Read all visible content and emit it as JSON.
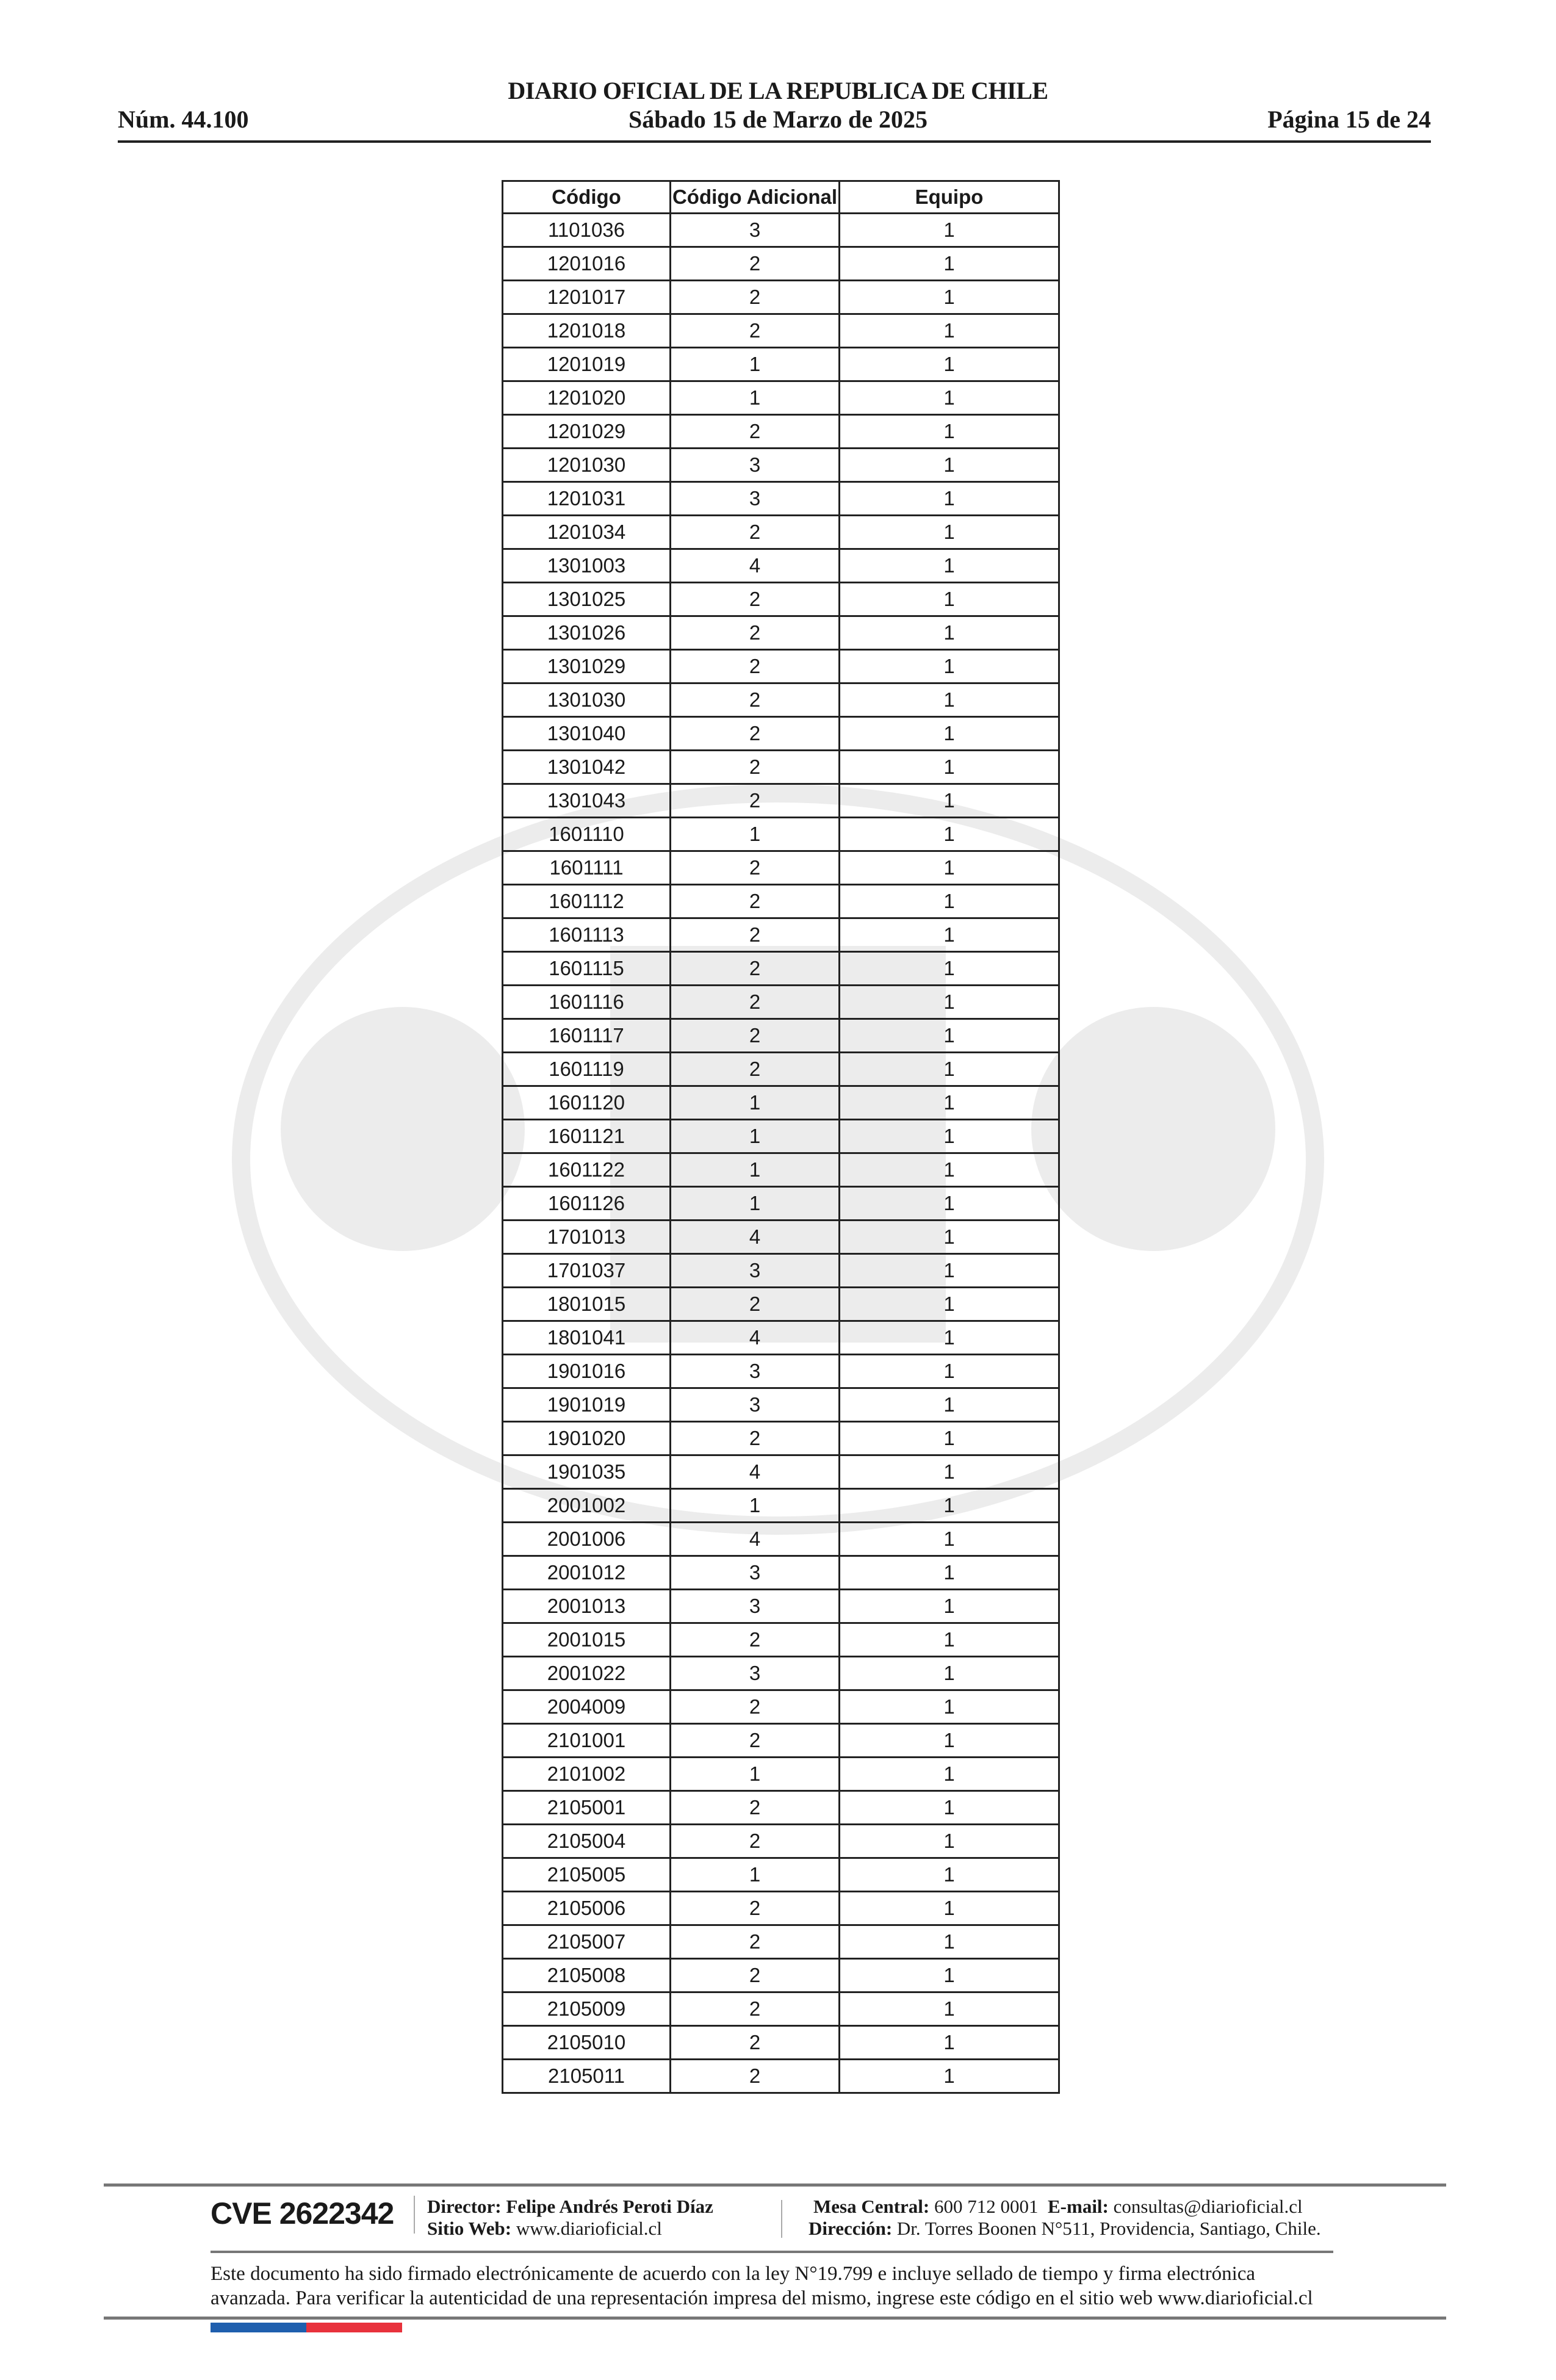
{
  "header": {
    "title": "DIARIO OFICIAL DE LA REPUBLICA DE CHILE",
    "number": "Núm. 44.100",
    "date": "Sábado 15 de Marzo de 2025",
    "page": "Página 15 de 24"
  },
  "table": {
    "columns": [
      "Código",
      "Código Adicional",
      "Equipo"
    ],
    "rows": [
      [
        "1101036",
        "3",
        "1"
      ],
      [
        "1201016",
        "2",
        "1"
      ],
      [
        "1201017",
        "2",
        "1"
      ],
      [
        "1201018",
        "2",
        "1"
      ],
      [
        "1201019",
        "1",
        "1"
      ],
      [
        "1201020",
        "1",
        "1"
      ],
      [
        "1201029",
        "2",
        "1"
      ],
      [
        "1201030",
        "3",
        "1"
      ],
      [
        "1201031",
        "3",
        "1"
      ],
      [
        "1201034",
        "2",
        "1"
      ],
      [
        "1301003",
        "4",
        "1"
      ],
      [
        "1301025",
        "2",
        "1"
      ],
      [
        "1301026",
        "2",
        "1"
      ],
      [
        "1301029",
        "2",
        "1"
      ],
      [
        "1301030",
        "2",
        "1"
      ],
      [
        "1301040",
        "2",
        "1"
      ],
      [
        "1301042",
        "2",
        "1"
      ],
      [
        "1301043",
        "2",
        "1"
      ],
      [
        "1601110",
        "1",
        "1"
      ],
      [
        "1601111",
        "2",
        "1"
      ],
      [
        "1601112",
        "2",
        "1"
      ],
      [
        "1601113",
        "2",
        "1"
      ],
      [
        "1601115",
        "2",
        "1"
      ],
      [
        "1601116",
        "2",
        "1"
      ],
      [
        "1601117",
        "2",
        "1"
      ],
      [
        "1601119",
        "2",
        "1"
      ],
      [
        "1601120",
        "1",
        "1"
      ],
      [
        "1601121",
        "1",
        "1"
      ],
      [
        "1601122",
        "1",
        "1"
      ],
      [
        "1601126",
        "1",
        "1"
      ],
      [
        "1701013",
        "4",
        "1"
      ],
      [
        "1701037",
        "3",
        "1"
      ],
      [
        "1801015",
        "2",
        "1"
      ],
      [
        "1801041",
        "4",
        "1"
      ],
      [
        "1901016",
        "3",
        "1"
      ],
      [
        "1901019",
        "3",
        "1"
      ],
      [
        "1901020",
        "2",
        "1"
      ],
      [
        "1901035",
        "4",
        "1"
      ],
      [
        "2001002",
        "1",
        "1"
      ],
      [
        "2001006",
        "4",
        "1"
      ],
      [
        "2001012",
        "3",
        "1"
      ],
      [
        "2001013",
        "3",
        "1"
      ],
      [
        "2001015",
        "2",
        "1"
      ],
      [
        "2001022",
        "3",
        "1"
      ],
      [
        "2004009",
        "2",
        "1"
      ],
      [
        "2101001",
        "2",
        "1"
      ],
      [
        "2101002",
        "1",
        "1"
      ],
      [
        "2105001",
        "2",
        "1"
      ],
      [
        "2105004",
        "2",
        "1"
      ],
      [
        "2105005",
        "1",
        "1"
      ],
      [
        "2105006",
        "2",
        "1"
      ],
      [
        "2105007",
        "2",
        "1"
      ],
      [
        "2105008",
        "2",
        "1"
      ],
      [
        "2105009",
        "2",
        "1"
      ],
      [
        "2105010",
        "2",
        "1"
      ],
      [
        "2105011",
        "2",
        "1"
      ]
    ]
  },
  "footer": {
    "cve": "CVE 2622342",
    "director_label": "Director:",
    "director_name": "Felipe Andrés Peroti Díaz",
    "web_label": "Sitio Web:",
    "web": "www.diarioficial.cl",
    "mesa_label": "Mesa Central:",
    "mesa": "600 712 0001",
    "email_label": "E-mail:",
    "email": "consultas@diarioficial.cl",
    "address_label": "Dirección:",
    "address": "Dr. Torres Boonen N°511, Providencia, Santiago, Chile.",
    "legal_1": "Este documento ha sido firmado electrónicamente de acuerdo con la ley N°19.799 e incluye sellado de tiempo y firma electrónica",
    "legal_2": "avanzada. Para verificar la autenticidad de una representación impresa del mismo, ingrese este código en el sitio web www.diarioficial.cl"
  },
  "colors": {
    "flag_blue": "#1f5fae",
    "flag_red": "#e8323c",
    "rule": "#777777"
  }
}
